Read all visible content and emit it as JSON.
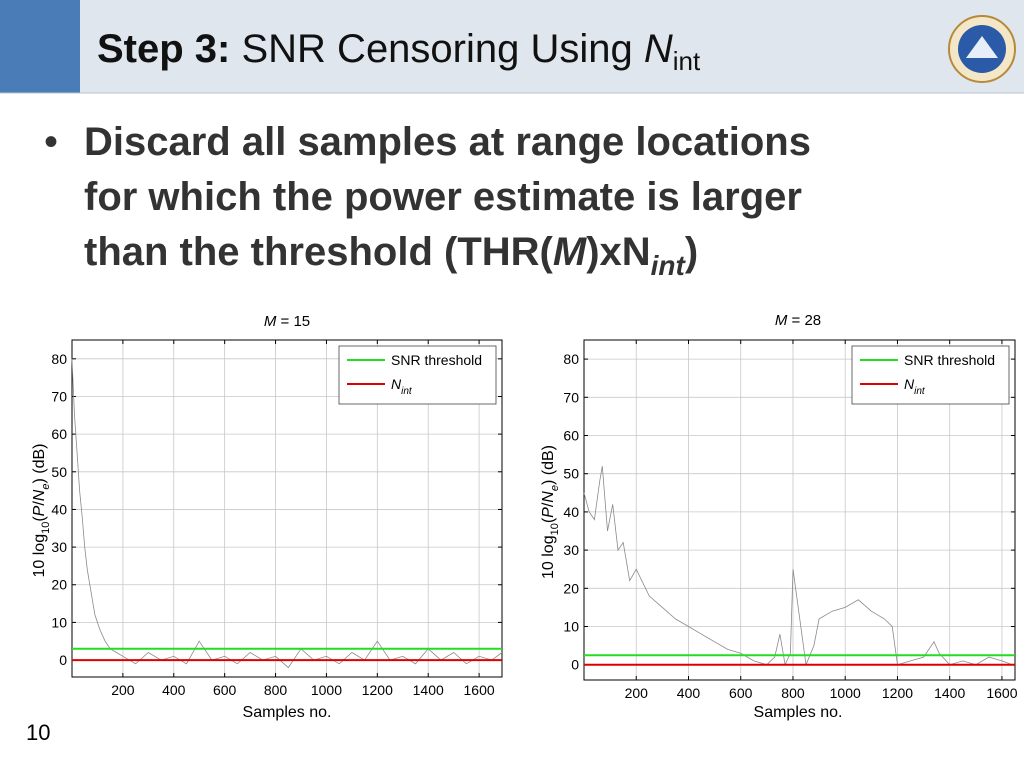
{
  "header": {
    "title_bold": "Step 3:",
    "title": "SNR Censoring Using",
    "title_symbol": "N",
    "title_sub": "int"
  },
  "bullet": {
    "parts": [
      "Discard all samples at range locations for which the power estimate is larger than the threshold (THR(",
      "M",
      ")xN",
      "int",
      ")"
    ]
  },
  "page_number": "10",
  "chart_data": [
    {
      "type": "line",
      "title_symbol": "M",
      "title": "= 15",
      "xlabel": "Samples no.",
      "ylabel": [
        "10 log",
        "10",
        "(",
        "P",
        "/",
        "N",
        "e",
        ") (dB)"
      ],
      "xlim": [
        0,
        1690
      ],
      "xticks": [
        200,
        400,
        600,
        800,
        1000,
        1200,
        1400,
        1600
      ],
      "ylim": [
        -4.5,
        85
      ],
      "yticks": [
        0,
        10,
        20,
        30,
        40,
        50,
        60,
        70,
        80
      ],
      "grid": true,
      "legend": "upper right",
      "series": [
        {
          "color": "#8a8a8a",
          "x": [
            0,
            10,
            20,
            30,
            40,
            50,
            60,
            75,
            90,
            110,
            130,
            150,
            175,
            200,
            250,
            300,
            350,
            400,
            450,
            500,
            550,
            600,
            650,
            700,
            750,
            800,
            850,
            900,
            950,
            1000,
            1050,
            1100,
            1150,
            1200,
            1250,
            1300,
            1350,
            1400,
            1450,
            1500,
            1550,
            1600,
            1650,
            1690
          ],
          "values": [
            80,
            65,
            55,
            45,
            38,
            30,
            24,
            18,
            12,
            8,
            5,
            3,
            2,
            1,
            -1,
            2,
            0,
            1,
            -1,
            5,
            0,
            1,
            -1,
            2,
            0,
            1,
            -2,
            3,
            0,
            1,
            -1,
            2,
            0,
            5,
            0,
            1,
            -1,
            3,
            0,
            2,
            -1,
            1,
            0,
            2
          ]
        },
        {
          "name": "SNR threshold",
          "color": "#22dd22",
          "x": [
            0,
            1690
          ],
          "values": [
            3,
            3
          ]
        },
        {
          "name": "N",
          "name_sub": "int",
          "color": "#dd0000",
          "x": [
            0,
            1690
          ],
          "values": [
            0,
            0
          ]
        }
      ]
    },
    {
      "type": "line",
      "title_symbol": "M",
      "title": "= 28",
      "xlabel": "Samples no.",
      "ylabel": [
        "10 log",
        "10",
        "(",
        "P",
        "/",
        "N",
        "e",
        ") (dB)"
      ],
      "xlim": [
        0,
        1650
      ],
      "xticks": [
        200,
        400,
        600,
        800,
        1000,
        1200,
        1400,
        1600
      ],
      "ylim": [
        -4,
        85
      ],
      "yticks": [
        0,
        10,
        20,
        30,
        40,
        50,
        60,
        70,
        80
      ],
      "grid": true,
      "legend": "upper right",
      "series": [
        {
          "color": "#8a8a8a",
          "x": [
            0,
            20,
            40,
            60,
            70,
            90,
            110,
            130,
            150,
            175,
            200,
            250,
            300,
            350,
            400,
            450,
            500,
            550,
            600,
            650,
            700,
            730,
            750,
            770,
            790,
            800,
            820,
            850,
            880,
            900,
            950,
            1000,
            1050,
            1100,
            1150,
            1180,
            1200,
            1250,
            1300,
            1340,
            1360,
            1400,
            1450,
            1500,
            1550,
            1600,
            1640
          ],
          "values": [
            45,
            40,
            38,
            48,
            52,
            35,
            42,
            30,
            32,
            22,
            25,
            18,
            15,
            12,
            10,
            8,
            6,
            4,
            3,
            1,
            0,
            2,
            8,
            0,
            3,
            25,
            15,
            0,
            5,
            12,
            14,
            15,
            17,
            14,
            12,
            10,
            0,
            1,
            2,
            6,
            3,
            0,
            1,
            0,
            2,
            1,
            0
          ]
        },
        {
          "name": "SNR threshold",
          "color": "#22dd22",
          "x": [
            0,
            1650
          ],
          "values": [
            2.5,
            2.5
          ]
        },
        {
          "name": "N",
          "name_sub": "int",
          "color": "#dd0000",
          "x": [
            0,
            1650
          ],
          "values": [
            0,
            0
          ]
        }
      ]
    }
  ]
}
